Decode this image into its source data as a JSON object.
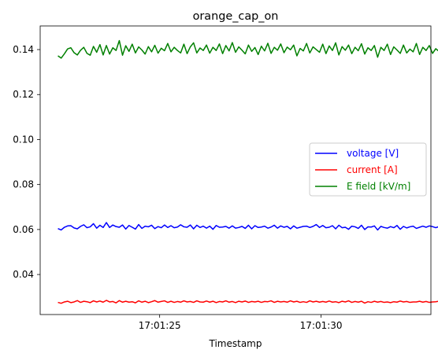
{
  "chart_data": {
    "type": "line",
    "title": "orange_cap_on",
    "xlabel": "Timestamp",
    "ylabel": "",
    "xlim": [
      21.3,
      33.4
    ],
    "ylim": [
      0.0222,
      0.1505
    ],
    "x_ticks": [
      {
        "value": 25,
        "label": "17:01:25"
      },
      {
        "value": 30,
        "label": "17:01:30"
      }
    ],
    "y_ticks": [
      {
        "value": 0.04,
        "label": "0.04"
      },
      {
        "value": 0.06,
        "label": "0.06"
      },
      {
        "value": 0.08,
        "label": "0.08"
      },
      {
        "value": 0.1,
        "label": "0.10"
      },
      {
        "value": 0.12,
        "label": "0.12"
      },
      {
        "value": 0.14,
        "label": "0.14"
      }
    ],
    "grid": false,
    "legend_position": "center-right",
    "x_start": 21.85,
    "x_step": 0.1,
    "series": [
      {
        "name": "voltage [V]",
        "color": "#0000ff",
        "values": [
          0.0604,
          0.0598,
          0.061,
          0.0616,
          0.0617,
          0.0607,
          0.0603,
          0.0614,
          0.0621,
          0.0608,
          0.0612,
          0.0626,
          0.0606,
          0.0619,
          0.0609,
          0.0631,
          0.0609,
          0.062,
          0.0613,
          0.061,
          0.062,
          0.0602,
          0.0618,
          0.061,
          0.0602,
          0.0622,
          0.0605,
          0.0615,
          0.0612,
          0.0619,
          0.0604,
          0.0613,
          0.0608,
          0.062,
          0.0609,
          0.0617,
          0.0608,
          0.0611,
          0.0621,
          0.0612,
          0.061,
          0.062,
          0.0603,
          0.0619,
          0.0609,
          0.0615,
          0.0606,
          0.0615,
          0.0601,
          0.0618,
          0.061,
          0.0611,
          0.0614,
          0.0606,
          0.0616,
          0.0606,
          0.0609,
          0.0614,
          0.0605,
          0.0619,
          0.0603,
          0.0617,
          0.0609,
          0.0611,
          0.0615,
          0.0606,
          0.0611,
          0.0619,
          0.0606,
          0.0616,
          0.061,
          0.0614,
          0.0603,
          0.0616,
          0.0606,
          0.061,
          0.0614,
          0.0615,
          0.0609,
          0.0614,
          0.0622,
          0.0609,
          0.0618,
          0.0608,
          0.061,
          0.0617,
          0.0603,
          0.0619,
          0.0608,
          0.061,
          0.0601,
          0.0615,
          0.0612,
          0.0605,
          0.0619,
          0.06,
          0.0612,
          0.0611,
          0.0616,
          0.0598,
          0.0614,
          0.0609,
          0.0606,
          0.0613,
          0.0608,
          0.0618,
          0.0601,
          0.0614,
          0.0607,
          0.0612,
          0.0615,
          0.0605,
          0.061,
          0.0615,
          0.061,
          0.0616,
          0.0613,
          0.0608,
          0.0613,
          0.0608,
          0.0613,
          0.0612,
          0.061,
          0.062,
          0.0611,
          0.0612,
          0.0614,
          0.0608,
          0.0613,
          0.0601,
          0.0613,
          0.0605,
          0.0603,
          0.0611,
          0.061
        ]
      },
      {
        "name": "current [A]",
        "color": "#ff0000",
        "values": [
          0.0276,
          0.0272,
          0.0278,
          0.0281,
          0.0275,
          0.0278,
          0.0284,
          0.0276,
          0.0281,
          0.0279,
          0.0275,
          0.0283,
          0.0278,
          0.0282,
          0.0277,
          0.0285,
          0.0278,
          0.028,
          0.0274,
          0.0284,
          0.0277,
          0.0281,
          0.0277,
          0.0279,
          0.0274,
          0.0283,
          0.0277,
          0.0281,
          0.0275,
          0.0279,
          0.0284,
          0.0277,
          0.028,
          0.0283,
          0.0276,
          0.0281,
          0.0276,
          0.028,
          0.0277,
          0.0283,
          0.0278,
          0.028,
          0.0276,
          0.0283,
          0.0278,
          0.0277,
          0.0282,
          0.0277,
          0.0281,
          0.0275,
          0.028,
          0.0278,
          0.0283,
          0.0277,
          0.028,
          0.0275,
          0.0281,
          0.0278,
          0.0282,
          0.0276,
          0.028,
          0.0278,
          0.0281,
          0.0276,
          0.028,
          0.0279,
          0.0283,
          0.0276,
          0.0281,
          0.0278,
          0.028,
          0.0277,
          0.0283,
          0.0278,
          0.0281,
          0.0276,
          0.0279,
          0.0276,
          0.0283,
          0.0278,
          0.0281,
          0.0277,
          0.028,
          0.0277,
          0.0282,
          0.0277,
          0.0279,
          0.0275,
          0.0281,
          0.0278,
          0.0283,
          0.0276,
          0.028,
          0.0277,
          0.0281,
          0.0273,
          0.0279,
          0.0276,
          0.0281,
          0.0277,
          0.028,
          0.0276,
          0.0278,
          0.0275,
          0.0279,
          0.0277,
          0.0282,
          0.0278,
          0.028,
          0.0276,
          0.0278,
          0.0278,
          0.0281,
          0.0277,
          0.028,
          0.0276,
          0.0278,
          0.0279,
          0.0281,
          0.0277,
          0.0279,
          0.0277,
          0.0281,
          0.0276,
          0.0279,
          0.0278,
          0.0277,
          0.0278,
          0.0275,
          0.0279,
          0.0276,
          0.0278,
          0.0275,
          0.0277,
          0.0278
        ]
      },
      {
        "name": "E field [kV/m]",
        "color": "#008000",
        "values": [
          0.1372,
          0.1362,
          0.1381,
          0.1403,
          0.1408,
          0.1386,
          0.1376,
          0.1397,
          0.141,
          0.1383,
          0.1375,
          0.1414,
          0.1388,
          0.1422,
          0.1376,
          0.1418,
          0.138,
          0.1408,
          0.1396,
          0.144,
          0.1375,
          0.1417,
          0.1392,
          0.1424,
          0.1385,
          0.1412,
          0.1398,
          0.138,
          0.1413,
          0.139,
          0.1419,
          0.1384,
          0.1406,
          0.1395,
          0.1427,
          0.139,
          0.141,
          0.1396,
          0.1385,
          0.1424,
          0.1382,
          0.1412,
          0.143,
          0.1385,
          0.1407,
          0.1396,
          0.142,
          0.1384,
          0.141,
          0.1396,
          0.1425,
          0.1382,
          0.1418,
          0.1394,
          0.1431,
          0.1388,
          0.1412,
          0.1397,
          0.1381,
          0.142,
          0.1392,
          0.1409,
          0.1378,
          0.1415,
          0.1394,
          0.1428,
          0.1383,
          0.141,
          0.1397,
          0.1425,
          0.1386,
          0.1411,
          0.1399,
          0.142,
          0.1372,
          0.1405,
          0.1394,
          0.1427,
          0.1385,
          0.1412,
          0.14,
          0.1388,
          0.1424,
          0.1382,
          0.1416,
          0.1396,
          0.143,
          0.1376,
          0.1413,
          0.1397,
          0.142,
          0.1382,
          0.141,
          0.1395,
          0.1426,
          0.138,
          0.1408,
          0.1396,
          0.1418,
          0.1366,
          0.141,
          0.1396,
          0.1424,
          0.1378,
          0.1412,
          0.1398,
          0.1383,
          0.142,
          0.1385,
          0.1402,
          0.139,
          0.1427,
          0.1378,
          0.141,
          0.1396,
          0.1418,
          0.1383,
          0.1404,
          0.1392,
          0.1361,
          0.141,
          0.1387,
          0.1413,
          0.1397,
          0.138,
          0.1413,
          0.1389,
          0.1405,
          0.1395,
          0.1418,
          0.1378,
          0.1401,
          0.1389,
          0.1362,
          0.1383,
          0.1382
        ]
      }
    ]
  }
}
